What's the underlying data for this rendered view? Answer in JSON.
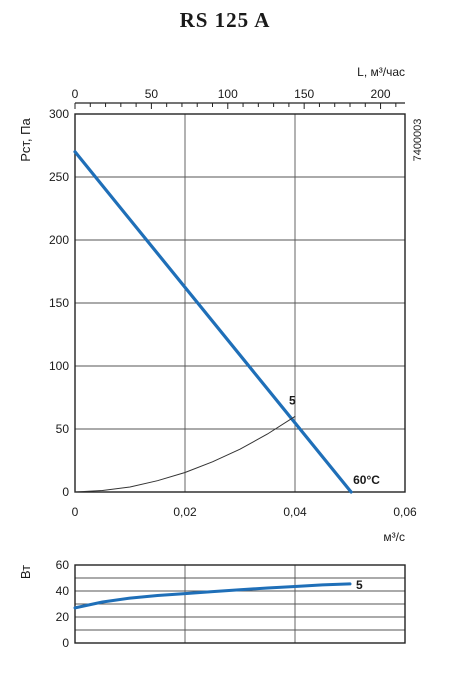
{
  "chart_data": [
    {
      "type": "line",
      "title": "RS 125 A",
      "code": "7400003",
      "ylabel": "Pст, Па",
      "xlabel_bottom": "м³/с",
      "xlabel_top": "L, м³/час",
      "ylim": [
        0,
        300
      ],
      "xlim": [
        0,
        0.06
      ],
      "xlim_top": [
        0,
        216
      ],
      "yticks": [
        0,
        50,
        100,
        150,
        200,
        250,
        300
      ],
      "xticks": [
        0,
        0.02,
        0.04,
        0.06
      ],
      "xtick_labels": [
        "0",
        "0,02",
        "0,04",
        "0,06"
      ],
      "xticks_top": [
        0,
        50,
        100,
        150,
        200
      ],
      "grid": true,
      "series": [
        {
          "name": "60°C",
          "color": "#1f6fb8",
          "x": [
            0,
            0.0502
          ],
          "y": [
            270,
            0
          ]
        },
        {
          "name": "5",
          "color": "#333333",
          "x": [
            0,
            0.005,
            0.01,
            0.015,
            0.02,
            0.025,
            0.03,
            0.035,
            0.04
          ],
          "y": [
            0,
            1.2,
            4,
            9,
            15.5,
            24,
            34,
            46,
            60
          ]
        }
      ]
    },
    {
      "type": "line",
      "ylabel": "Вт",
      "ylim": [
        0,
        60
      ],
      "xlim": [
        0,
        0.06
      ],
      "yticks": [
        0,
        20,
        40,
        60
      ],
      "grid": true,
      "series": [
        {
          "name": "5",
          "color": "#1f6fb8",
          "x": [
            0,
            0.005,
            0.01,
            0.015,
            0.02,
            0.025,
            0.03,
            0.035,
            0.04,
            0.045,
            0.05
          ],
          "y": [
            27,
            31.5,
            34.5,
            36.5,
            38,
            39.5,
            41,
            42.3,
            43.5,
            44.7,
            45.5
          ]
        }
      ]
    }
  ]
}
